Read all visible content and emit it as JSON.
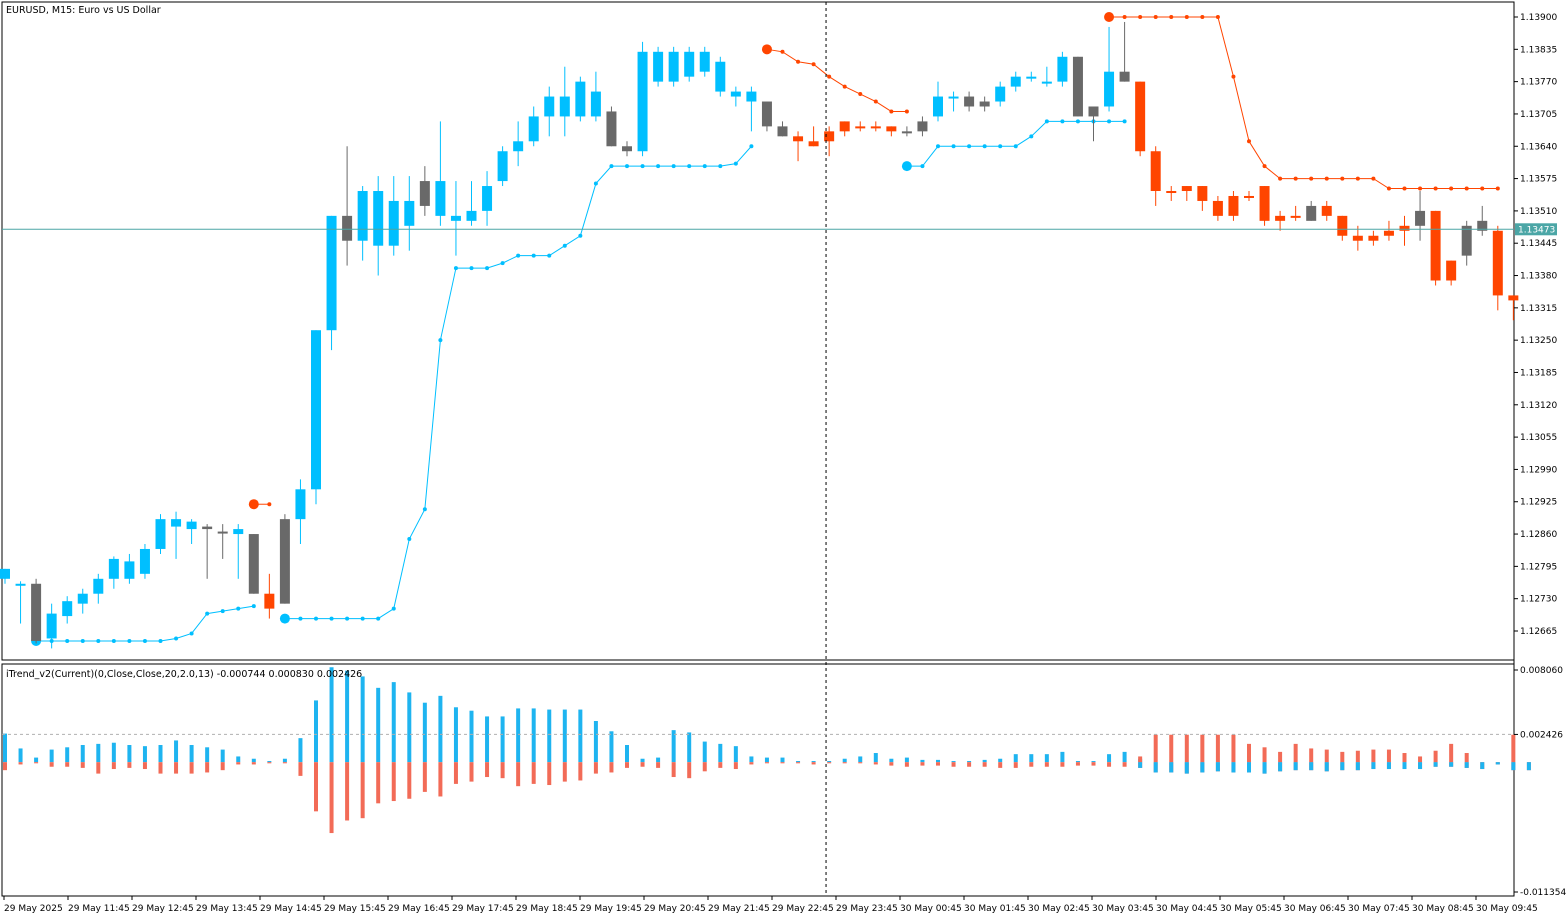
{
  "main_chart": {
    "title": "EURUSD, M15:  Euro vs US Dollar",
    "price_axis": [
      "1.13900",
      "1.13835",
      "1.13770",
      "1.13705",
      "1.13640",
      "1.13575",
      "1.13510",
      "1.13445",
      "1.13380",
      "1.13315",
      "1.13250",
      "1.13185",
      "1.13120",
      "1.13055",
      "1.12990",
      "1.12925",
      "1.12860",
      "1.12795",
      "1.12730",
      "1.12665"
    ],
    "current_price": "1.13473",
    "current_price_value": 1.13473,
    "y_range": [
      1.1262,
      1.13925
    ]
  },
  "indicator": {
    "label": "iTrend_v2(Current)(0,Close,Close,20,2.0,13) -0.000744 0.000830 0.002426",
    "axis_labels": [
      "0.008060",
      "0.002426",
      "-0.011354"
    ],
    "y_range": [
      -0.011354,
      0.00806
    ],
    "level": 0.002426
  },
  "time_axis": [
    "29 May 2025",
    "29 May 11:45",
    "29 May 12:45",
    "29 May 13:45",
    "29 May 14:45",
    "29 May 15:45",
    "29 May 16:45",
    "29 May 17:45",
    "29 May 18:45",
    "29 May 19:45",
    "29 May 20:45",
    "29 May 21:45",
    "29 May 22:45",
    "29 May 23:45",
    "30 May 00:45",
    "30 May 01:45",
    "30 May 02:45",
    "30 May 03:45",
    "30 May 04:45",
    "30 May 05:45",
    "30 May 06:45",
    "30 May 07:45",
    "30 May 08:45",
    "30 May 09:45"
  ],
  "colors": {
    "bull": "#00BFFF",
    "bear": "#FF4500",
    "neutral": "#696969",
    "bull_line": "#00BFFF",
    "bear_line": "#FF4500",
    "hist_bull": "#1EB4F0",
    "hist_bear": "#F26B57",
    "price_line": "#4BA6A6"
  },
  "chart_data": {
    "type": "candlestick",
    "candles": [
      [
        1.1279,
        1.1279,
        1.1276,
        1.1277,
        "bull"
      ],
      [
        1.1276,
        1.12765,
        1.1268,
        1.1276,
        "bull"
      ],
      [
        1.1276,
        1.1277,
        1.1264,
        1.12645,
        "neutral"
      ],
      [
        1.1265,
        1.1272,
        1.1263,
        1.127,
        "bull"
      ],
      [
        1.12695,
        1.12735,
        1.1268,
        1.12725,
        "bull"
      ],
      [
        1.1272,
        1.1275,
        1.127,
        1.1274,
        "bull"
      ],
      [
        1.1274,
        1.1278,
        1.1272,
        1.1277,
        "bull"
      ],
      [
        1.1277,
        1.12815,
        1.1275,
        1.1281,
        "bull"
      ],
      [
        1.1277,
        1.1282,
        1.1276,
        1.12805,
        "bull"
      ],
      [
        1.1278,
        1.1284,
        1.1277,
        1.1283,
        "bull"
      ],
      [
        1.1283,
        1.129,
        1.1282,
        1.1289,
        "bull"
      ],
      [
        1.1289,
        1.12905,
        1.1281,
        1.12875,
        "bull"
      ],
      [
        1.1287,
        1.1289,
        1.1284,
        1.12885,
        "bull"
      ],
      [
        1.1287,
        1.1288,
        1.1277,
        1.12875,
        "neutral"
      ],
      [
        1.12865,
        1.1288,
        1.1281,
        1.12865,
        "neutral"
      ],
      [
        1.1287,
        1.1288,
        1.1277,
        1.1286,
        "bull"
      ],
      [
        1.1286,
        1.1286,
        1.1274,
        1.1274,
        "neutral"
      ],
      [
        1.1274,
        1.1278,
        1.1269,
        1.1271,
        "bear"
      ],
      [
        1.1272,
        1.129,
        1.1272,
        1.1289,
        "neutral"
      ],
      [
        1.1289,
        1.1297,
        1.1284,
        1.1295,
        "bull"
      ],
      [
        1.1295,
        1.1327,
        1.1292,
        1.1327,
        "bull"
      ],
      [
        1.1327,
        1.135,
        1.1323,
        1.135,
        "bull"
      ],
      [
        1.1345,
        1.1364,
        1.134,
        1.135,
        "neutral"
      ],
      [
        1.1345,
        1.1356,
        1.1341,
        1.1355,
        "bull"
      ],
      [
        1.1355,
        1.1358,
        1.1338,
        1.1344,
        "bull"
      ],
      [
        1.1344,
        1.1358,
        1.1342,
        1.1353,
        "bull"
      ],
      [
        1.1353,
        1.1358,
        1.1343,
        1.1348,
        "bull"
      ],
      [
        1.1352,
        1.136,
        1.135,
        1.1357,
        "neutral"
      ],
      [
        1.1357,
        1.1369,
        1.1348,
        1.135,
        "bull"
      ],
      [
        1.1349,
        1.1357,
        1.1342,
        1.135,
        "bull"
      ],
      [
        1.1349,
        1.1357,
        1.1348,
        1.1351,
        "bull"
      ],
      [
        1.1351,
        1.1359,
        1.1348,
        1.1356,
        "bull"
      ],
      [
        1.1357,
        1.1364,
        1.1356,
        1.1363,
        "bull"
      ],
      [
        1.1363,
        1.1369,
        1.136,
        1.1365,
        "bull"
      ],
      [
        1.1365,
        1.1372,
        1.1364,
        1.137,
        "bull"
      ],
      [
        1.137,
        1.1376,
        1.1366,
        1.1374,
        "bull"
      ],
      [
        1.137,
        1.138,
        1.1366,
        1.1374,
        "bull"
      ],
      [
        1.137,
        1.1378,
        1.1369,
        1.1377,
        "bull"
      ],
      [
        1.137,
        1.1379,
        1.1369,
        1.1375,
        "bull"
      ],
      [
        1.1371,
        1.1372,
        1.1364,
        1.1364,
        "neutral"
      ],
      [
        1.1364,
        1.1365,
        1.1362,
        1.1363,
        "neutral"
      ],
      [
        1.1363,
        1.1385,
        1.1362,
        1.1383,
        "bull"
      ],
      [
        1.1377,
        1.1384,
        1.1376,
        1.1383,
        "bull"
      ],
      [
        1.1377,
        1.1384,
        1.1376,
        1.1383,
        "bull"
      ],
      [
        1.1378,
        1.1384,
        1.1377,
        1.1383,
        "bull"
      ],
      [
        1.1379,
        1.1384,
        1.1378,
        1.1383,
        "bull"
      ],
      [
        1.1375,
        1.1382,
        1.1374,
        1.1381,
        "bull"
      ],
      [
        1.1374,
        1.1376,
        1.1372,
        1.1375,
        "bull"
      ],
      [
        1.1373,
        1.1376,
        1.1367,
        1.1375,
        "bull"
      ],
      [
        1.1373,
        1.1373,
        1.1367,
        1.1368,
        "neutral"
      ],
      [
        1.1368,
        1.1369,
        1.1366,
        1.1366,
        "neutral"
      ],
      [
        1.1366,
        1.1367,
        1.1361,
        1.1365,
        "bear"
      ],
      [
        1.1365,
        1.1368,
        1.1364,
        1.1364,
        "bear"
      ],
      [
        1.1367,
        1.1368,
        1.1362,
        1.1365,
        "bear"
      ],
      [
        1.1367,
        1.1369,
        1.1366,
        1.1369,
        "bear"
      ],
      [
        1.1368,
        1.1369,
        1.1367,
        1.1368,
        "bear"
      ],
      [
        1.1368,
        1.1369,
        1.1367,
        1.1368,
        "bear"
      ],
      [
        1.1368,
        1.1368,
        1.1366,
        1.1367,
        "bear"
      ],
      [
        1.1367,
        1.1368,
        1.1366,
        1.1367,
        "neutral"
      ],
      [
        1.1367,
        1.137,
        1.1366,
        1.1369,
        "neutral"
      ],
      [
        1.137,
        1.1377,
        1.1369,
        1.1374,
        "bull"
      ],
      [
        1.1374,
        1.1375,
        1.1371,
        1.1374,
        "bull"
      ],
      [
        1.1374,
        1.1375,
        1.1371,
        1.1372,
        "neutral"
      ],
      [
        1.1372,
        1.1374,
        1.1371,
        1.1373,
        "neutral"
      ],
      [
        1.1373,
        1.1377,
        1.1372,
        1.1376,
        "bull"
      ],
      [
        1.1376,
        1.1379,
        1.1375,
        1.1378,
        "bull"
      ],
      [
        1.1378,
        1.1379,
        1.1377,
        1.1378,
        "bull"
      ],
      [
        1.1377,
        1.138,
        1.1376,
        1.1377,
        "bull"
      ],
      [
        1.1377,
        1.1383,
        1.1376,
        1.1382,
        "bull"
      ],
      [
        1.1382,
        1.1382,
        1.137,
        1.137,
        "neutral"
      ],
      [
        1.137,
        1.1372,
        1.1365,
        1.1372,
        "neutral"
      ],
      [
        1.1372,
        1.1388,
        1.1371,
        1.1379,
        "bull"
      ],
      [
        1.1379,
        1.1389,
        1.1377,
        1.1377,
        "neutral"
      ],
      [
        1.1377,
        1.1377,
        1.1362,
        1.1363,
        "bear"
      ],
      [
        1.1363,
        1.1364,
        1.1352,
        1.1355,
        "bear"
      ],
      [
        1.1355,
        1.1356,
        1.1353,
        1.1355,
        "bear"
      ],
      [
        1.1356,
        1.1356,
        1.1353,
        1.1355,
        "bear"
      ],
      [
        1.1356,
        1.1356,
        1.1351,
        1.1353,
        "bear"
      ],
      [
        1.1353,
        1.1354,
        1.1349,
        1.135,
        "bear"
      ],
      [
        1.1354,
        1.1355,
        1.1349,
        1.135,
        "bear"
      ],
      [
        1.1354,
        1.1355,
        1.1353,
        1.1354,
        "bear"
      ],
      [
        1.1356,
        1.1356,
        1.1348,
        1.1349,
        "bear"
      ],
      [
        1.135,
        1.1351,
        1.1347,
        1.1349,
        "bear"
      ],
      [
        1.135,
        1.1352,
        1.1349,
        1.135,
        "bear"
      ],
      [
        1.1349,
        1.1353,
        1.1349,
        1.1352,
        "neutral"
      ],
      [
        1.1352,
        1.1353,
        1.1349,
        1.135,
        "bear"
      ],
      [
        1.135,
        1.135,
        1.1345,
        1.1346,
        "bear"
      ],
      [
        1.1346,
        1.1348,
        1.1343,
        1.1345,
        "bear"
      ],
      [
        1.1346,
        1.1347,
        1.1344,
        1.1345,
        "bear"
      ],
      [
        1.1347,
        1.1349,
        1.1345,
        1.1346,
        "bear"
      ],
      [
        1.1348,
        1.135,
        1.1344,
        1.1347,
        "bear"
      ],
      [
        1.1348,
        1.1355,
        1.1345,
        1.1351,
        "neutral"
      ],
      [
        1.1351,
        1.1351,
        1.1336,
        1.1337,
        "bear"
      ],
      [
        1.1341,
        1.1341,
        1.1336,
        1.1337,
        "bear"
      ],
      [
        1.1342,
        1.1349,
        1.134,
        1.1348,
        "neutral"
      ],
      [
        1.1347,
        1.1352,
        1.1346,
        1.1349,
        "neutral"
      ],
      [
        1.1347,
        1.1348,
        1.1331,
        1.1334,
        "bear"
      ],
      [
        1.1334,
        1.1334,
        1.1329,
        1.1333,
        "bear"
      ]
    ],
    "trail_bull_segments": [
      {
        "start": 2,
        "values": [
          1.12645,
          1.12645,
          1.12645,
          1.12645,
          1.12645,
          1.12645,
          1.12645,
          1.12645,
          1.12645,
          1.1265,
          1.1266,
          1.127,
          1.12705,
          1.1271,
          1.12715
        ]
      },
      {
        "start": 18,
        "values": [
          1.1269,
          1.1269,
          1.1269,
          1.1269,
          1.1269,
          1.1269,
          1.1269,
          1.1271,
          1.1285,
          1.1291,
          1.1325,
          1.13395,
          1.13395,
          1.13395,
          1.13405,
          1.1342,
          1.1342,
          1.1342,
          1.1344,
          1.1346,
          1.13565,
          1.136,
          1.136,
          1.136,
          1.136,
          1.136,
          1.136,
          1.136,
          1.136,
          1.13605,
          1.1364
        ]
      },
      {
        "start": 58,
        "values": [
          1.136,
          1.136,
          1.1364,
          1.1364,
          1.1364,
          1.1364,
          1.1364,
          1.1364,
          1.1366,
          1.1369,
          1.1369,
          1.1369,
          1.1369,
          1.1369,
          1.1369
        ]
      }
    ],
    "trail_bear_segments": [
      {
        "start": 16,
        "values": [
          1.1292,
          1.1292
        ]
      },
      {
        "start": 49,
        "values": [
          1.13835,
          1.1383,
          1.1381,
          1.13805,
          1.1378,
          1.1376,
          1.13745,
          1.1373,
          1.1371,
          1.1371
        ]
      },
      {
        "start": 71,
        "values": [
          1.139,
          1.139,
          1.139,
          1.139,
          1.139,
          1.139,
          1.139,
          1.139,
          1.1378,
          1.1365,
          1.136,
          1.13575,
          1.13575,
          1.13575,
          1.13575,
          1.13575,
          1.13575,
          1.13575,
          1.13555,
          1.13555,
          1.13555,
          1.13555,
          1.13555,
          1.13555,
          1.13555,
          1.13555
        ]
      }
    ],
    "histogram": {
      "pos": [
        0.0025,
        0.0012,
        0.0004,
        0.0011,
        0.0013,
        0.0015,
        0.0016,
        0.0017,
        0.0015,
        0.0014,
        0.0015,
        0.0019,
        0.0015,
        0.0013,
        0.0011,
        0.0005,
        0.0003,
        0.0001,
        0.0003,
        0.0021,
        0.0054,
        0.0083,
        0.008,
        0.0075,
        0.0065,
        0.007,
        0.0061,
        0.0052,
        0.0058,
        0.0048,
        0.0045,
        0.004,
        0.004,
        0.0047,
        0.0047,
        0.0046,
        0.0046,
        0.0046,
        0.0036,
        0.0027,
        0.0015,
        0.0003,
        0.0004,
        0.0028,
        0.0026,
        0.0018,
        0.0016,
        0.0014,
        0.0005,
        0.0004,
        0.0004,
        0.0001,
        0.0001,
        0.0001,
        0.0003,
        0.0005,
        0.0008,
        0.0003,
        0.0004,
        0.0002,
        0.0002,
        0.0001,
        0.0001,
        0.0002,
        0.0003,
        0.0007,
        0.0007,
        0.0007,
        0.0009,
        0.0001,
        0.0001,
        0.0007,
        0.0009,
        0.0003,
        0,
        0,
        0,
        0,
        0,
        0,
        0,
        0,
        0,
        0,
        0,
        0,
        0,
        0,
        0,
        0,
        0,
        0,
        0,
        0,
        0,
        0,
        0
      ],
      "neg": [
        -0.0007,
        -0.0002,
        -0.0001,
        -0.0004,
        -0.0004,
        -0.0005,
        -0.001,
        -0.0006,
        -0.0005,
        -0.0006,
        -0.001,
        -0.001,
        -0.001,
        -0.0009,
        -0.0007,
        -0.0002,
        -0.0002,
        -0.0001,
        -0.0001,
        -0.0012,
        -0.0043,
        -0.0062,
        -0.0051,
        -0.0049,
        -0.0036,
        -0.0034,
        -0.0032,
        -0.0026,
        -0.003,
        -0.0019,
        -0.0017,
        -0.0013,
        -0.0014,
        -0.0021,
        -0.0019,
        -0.002,
        -0.0017,
        -0.0016,
        -0.001,
        -0.0009,
        -0.0005,
        -0.0004,
        -0.0005,
        -0.0013,
        -0.0014,
        -0.0008,
        -0.0005,
        -0.0006,
        -0.0002,
        -0.0001,
        -0.0001,
        -0.0001,
        -0.0002,
        -0.0001,
        -0.0001,
        -0.0001,
        -0.0002,
        -0.0003,
        -0.0004,
        -0.0003,
        -0.0003,
        -0.0004,
        -0.0004,
        -0.0004,
        -0.0005,
        -0.0005,
        -0.0004,
        -0.0004,
        -0.0004,
        -0.0003,
        -0.0003,
        -0.0004,
        -0.0004,
        -0.0005,
        -0.0009,
        -0.0009,
        -0.001,
        -0.0009,
        -0.0008,
        -0.0009,
        -0.0009,
        -0.001,
        -0.0008,
        -0.0007,
        -0.0007,
        -0.0008,
        -0.0007,
        -0.0007,
        -0.0006,
        -0.0006,
        -0.0006,
        -0.0006,
        -0.0004,
        -0.0004,
        -0.0005,
        -0.0006,
        -0.0002,
        -0.0007,
        -0.0007
      ],
      "late_pos": {
        "start": 73,
        "values": [
          0.0005,
          0.0024,
          0.0024,
          0.0024,
          0.0024,
          0.0024,
          0.0024,
          0.0016,
          0.0013,
          0.0009,
          0.0016,
          0.0012,
          0.0011,
          0.0009,
          0.001,
          0.0011,
          0.0011,
          0.0008,
          0.0005,
          0.001,
          0.0016,
          0.0008,
          0,
          0,
          0.0024
        ]
      }
    },
    "crosshair_index": 52.8
  }
}
